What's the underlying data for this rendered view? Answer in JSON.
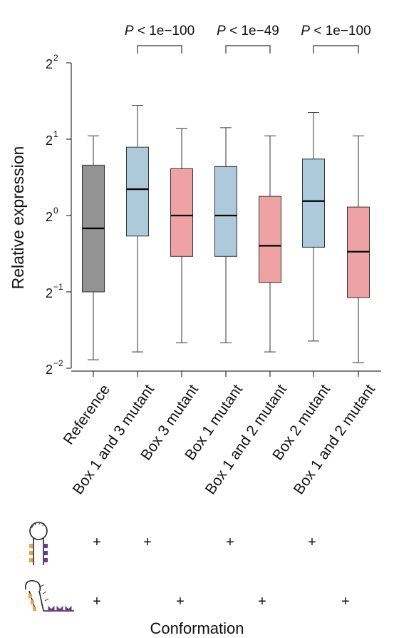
{
  "chart_data": {
    "type": "box",
    "ylabel": "Relative expression",
    "yscale": "log2",
    "ylim": [
      0.25,
      4
    ],
    "yticks": [
      {
        "base": "2",
        "exp": "−2",
        "value": 0.25
      },
      {
        "base": "2",
        "exp": "−1",
        "value": 0.5
      },
      {
        "base": "2",
        "exp": "0",
        "value": 1
      },
      {
        "base": "2",
        "exp": "1",
        "value": 2
      },
      {
        "base": "2",
        "exp": "2",
        "value": 4
      }
    ],
    "categories": [
      "Reference",
      "Box 1 and 3 mutant",
      "Box 3 mutant",
      "Box 1 mutant",
      "Box 1 and 2 mutant",
      "Box 2 mutant",
      "Box 1 and 2 mutant"
    ],
    "boxes": [
      {
        "whisker_low": 0.27,
        "q1": 0.5,
        "median": 0.89,
        "q3": 1.58,
        "whisker_high": 2.06,
        "color": "#939393"
      },
      {
        "whisker_low": 0.29,
        "q1": 0.83,
        "median": 1.27,
        "q3": 1.86,
        "whisker_high": 2.72,
        "color": "#adcadb"
      },
      {
        "whisker_low": 0.315,
        "q1": 0.69,
        "median": 1.0,
        "q3": 1.53,
        "whisker_high": 2.2,
        "color": "#eea2a3"
      },
      {
        "whisker_low": 0.315,
        "q1": 0.69,
        "median": 1.0,
        "q3": 1.56,
        "whisker_high": 2.22,
        "color": "#adcadb"
      },
      {
        "whisker_low": 0.29,
        "q1": 0.545,
        "median": 0.76,
        "q3": 1.19,
        "whisker_high": 2.06,
        "color": "#eea2a3"
      },
      {
        "whisker_low": 0.32,
        "q1": 0.75,
        "median": 1.14,
        "q3": 1.67,
        "whisker_high": 2.55,
        "color": "#adcadb"
      },
      {
        "whisker_low": 0.263,
        "q1": 0.475,
        "median": 0.72,
        "q3": 1.08,
        "whisker_high": 2.06,
        "color": "#eea2a3"
      }
    ],
    "comparisons": [
      {
        "from": 1,
        "to": 2,
        "p_symbol": "P",
        "p_text": " < 1e−100"
      },
      {
        "from": 3,
        "to": 4,
        "p_symbol": "P",
        "p_text": " < 1e−49"
      },
      {
        "from": 5,
        "to": 6,
        "p_symbol": "P",
        "p_text": " < 1e−100"
      }
    ]
  },
  "conformations": {
    "hairpin_marks": [
      "+",
      "+",
      "",
      "+",
      "",
      "+",
      ""
    ],
    "open_marks": [
      "+",
      "",
      "+",
      "",
      "+",
      "",
      "+"
    ]
  },
  "footer": {
    "label": "Conformation"
  },
  "colors": {
    "reference": "#939393",
    "blue": "#adcadb",
    "pink": "#eea2a3",
    "line": "#333333"
  }
}
